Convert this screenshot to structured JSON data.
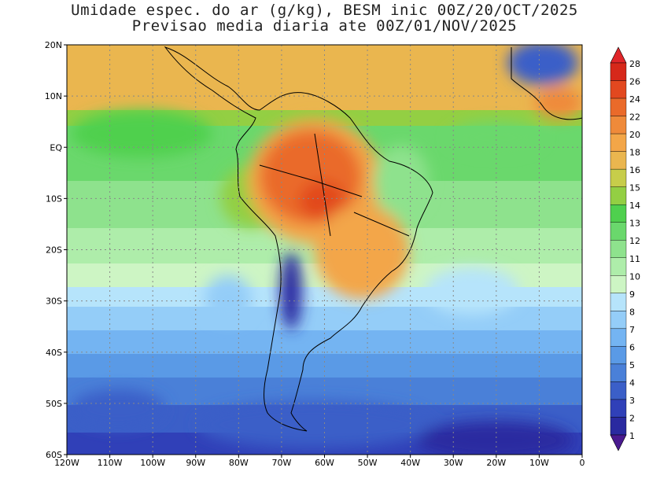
{
  "title": {
    "line1": "Umidade espec. do ar (g/kg), BESM inic 00Z/20/OCT/2025",
    "line2": "Previsao media diaria ate 00Z/01/NOV/2025"
  },
  "map": {
    "lon_range": [
      -120,
      0
    ],
    "lat_range": [
      -60,
      20
    ],
    "lon_ticks": [
      "120W",
      "110W",
      "100W",
      "90W",
      "80W",
      "70W",
      "60W",
      "50W",
      "40W",
      "30W",
      "20W",
      "10W",
      "0"
    ],
    "lat_ticks": [
      "20N",
      "10N",
      "EQ",
      "10S",
      "20S",
      "30S",
      "40S",
      "50S",
      "60S"
    ],
    "grid": true,
    "region": "South America"
  },
  "colorbar": {
    "levels": [
      "1",
      "2",
      "3",
      "4",
      "5",
      "6",
      "7",
      "8",
      "9",
      "10",
      "11",
      "12",
      "13",
      "14",
      "15",
      "16",
      "18",
      "20",
      "22",
      "24",
      "26",
      "28"
    ],
    "colors": [
      "#3b1a8c",
      "#2a2aa0",
      "#3040b8",
      "#3b5fc8",
      "#4a80d8",
      "#5a9ae6",
      "#74b4f2",
      "#94cdf8",
      "#b6e4fb",
      "#cdf5c4",
      "#aeedaa",
      "#8ee28d",
      "#6ad86c",
      "#4fd04e",
      "#93cf43",
      "#c7cd4a",
      "#eab64f",
      "#f3a648",
      "#ef8a3a",
      "#ea6a2a",
      "#e2481f",
      "#d6281a",
      "#c41414"
    ],
    "triangle_color_top": "#e0262a",
    "triangle_color_bottom": "#4a1a90"
  }
}
